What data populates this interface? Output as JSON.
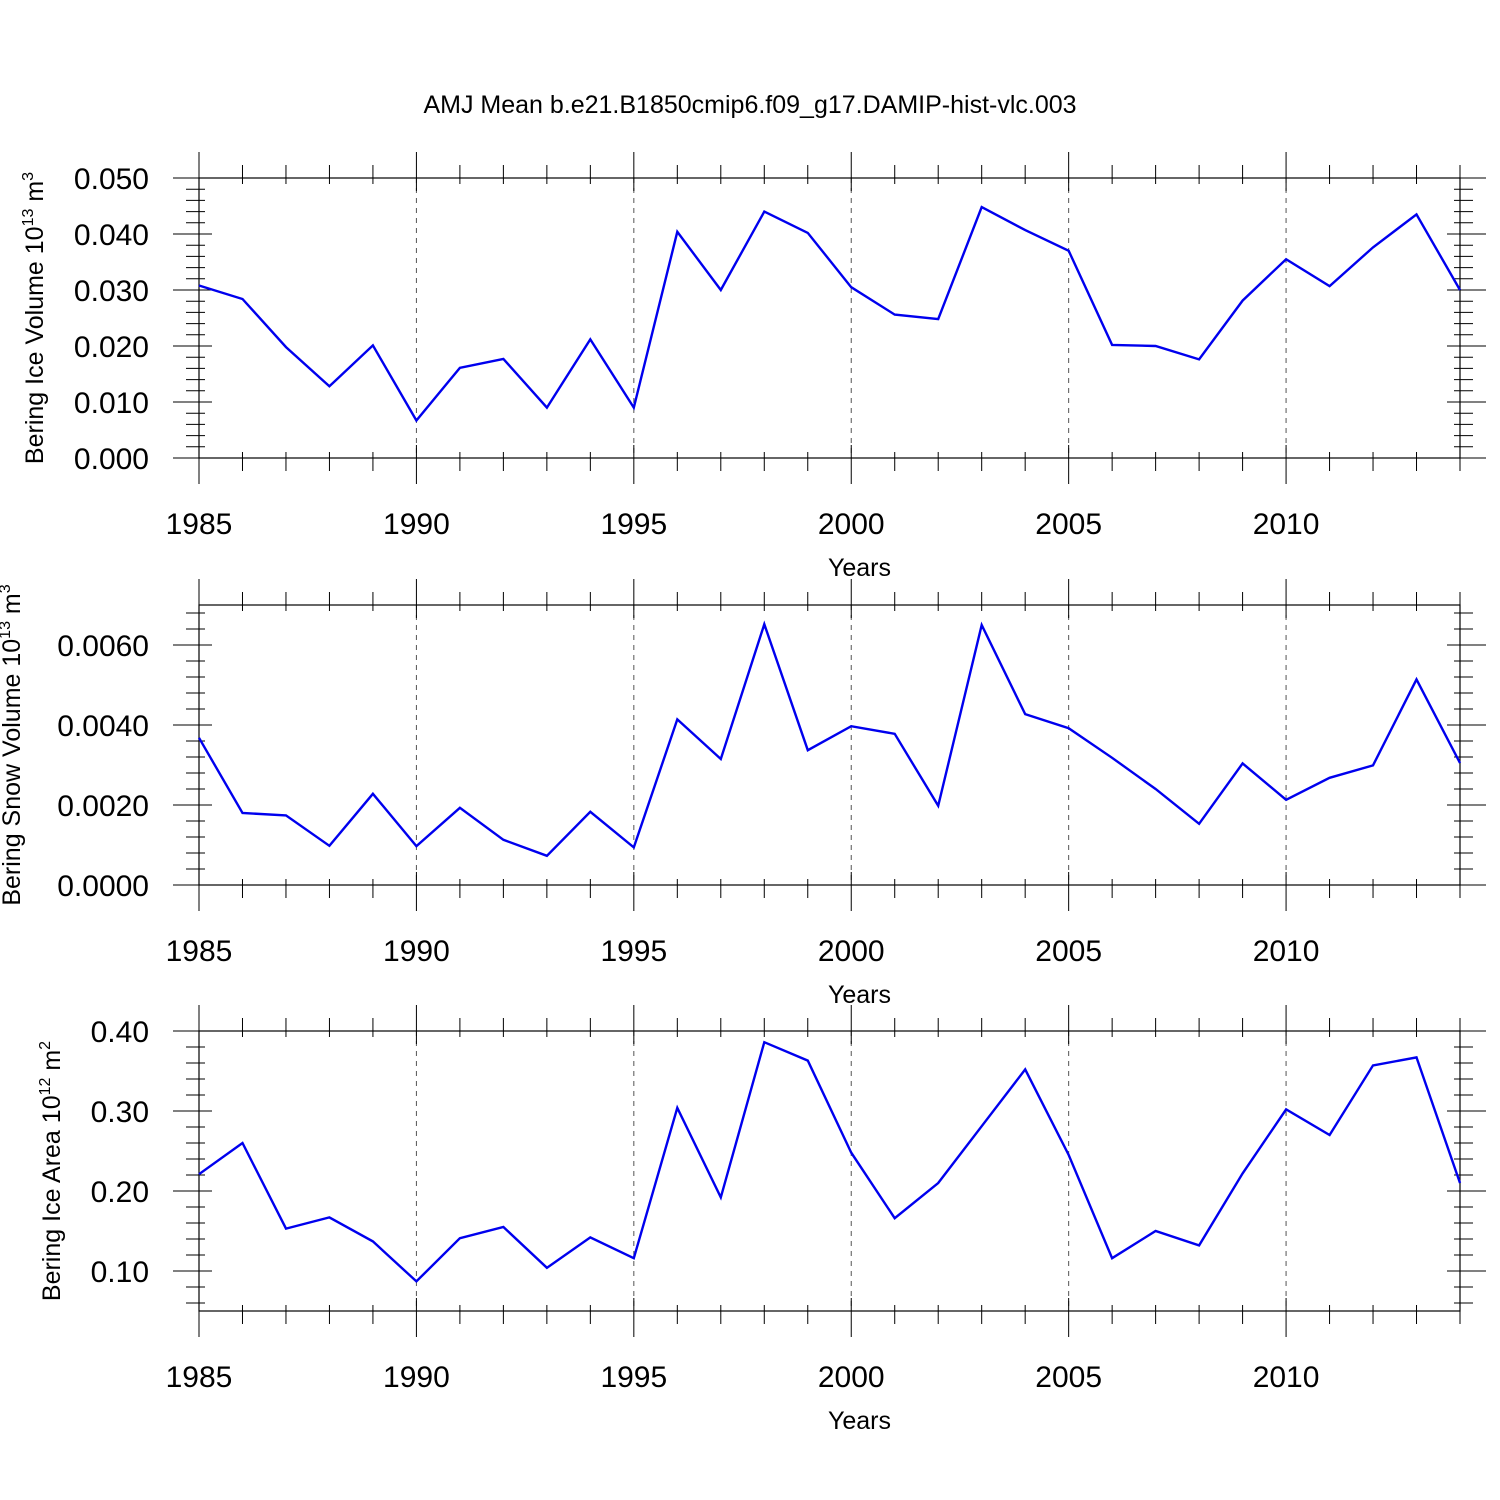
{
  "title": "AMJ Mean b.e21.B1850cmip6.f09_g17.DAMIP-hist-vlc.003",
  "colors": {
    "line": "#0000ee",
    "axis": "#000000",
    "grid": "#555555"
  },
  "chart_data": [
    {
      "type": "line",
      "ylabel": "Bering Ice Volume 10",
      "ylabel_exp": "13",
      "ylabel_unit": " m",
      "ylabel_unit_exp": "3",
      "xlabel": "Years",
      "xlim": [
        1985,
        2014
      ],
      "ylim": [
        0.0,
        0.05
      ],
      "xticks": [
        1985,
        1990,
        1995,
        2000,
        2005,
        2010
      ],
      "xtick_labels": [
        "1985",
        "1990",
        "1995",
        "2000",
        "2005",
        "2010"
      ],
      "yticks": [
        0.0,
        0.01,
        0.02,
        0.03,
        0.04,
        0.05
      ],
      "ytick_labels": [
        "0.000",
        "0.010",
        "0.020",
        "0.030",
        "0.040",
        "0.050"
      ],
      "grid": "vertical dashed at major x ticks",
      "x": [
        1985,
        1986,
        1987,
        1988,
        1989,
        1990,
        1991,
        1992,
        1993,
        1994,
        1995,
        1996,
        1997,
        1998,
        1999,
        2000,
        2001,
        2002,
        2003,
        2004,
        2005,
        2006,
        2007,
        2008,
        2009,
        2010,
        2011,
        2012,
        2013,
        2014
      ],
      "series": [
        {
          "values": [
            0.0308,
            0.0284,
            0.0198,
            0.0128,
            0.0201,
            0.0067,
            0.0161,
            0.0177,
            0.009,
            0.0212,
            0.009,
            0.0404,
            0.03,
            0.044,
            0.0402,
            0.0305,
            0.0256,
            0.0248,
            0.0448,
            0.0407,
            0.037,
            0.0202,
            0.02,
            0.0176,
            0.0281,
            0.0355,
            0.0307,
            0.0376,
            0.0435,
            0.03
          ]
        }
      ]
    },
    {
      "type": "line",
      "ylabel": "Bering Snow Volume 10",
      "ylabel_exp": "13",
      "ylabel_unit": " m",
      "ylabel_unit_exp": "3",
      "xlabel": "Years",
      "xlim": [
        1985,
        2014
      ],
      "ylim": [
        0.0,
        0.007
      ],
      "xticks": [
        1985,
        1990,
        1995,
        2000,
        2005,
        2010
      ],
      "xtick_labels": [
        "1985",
        "1990",
        "1995",
        "2000",
        "2005",
        "2010"
      ],
      "yticks": [
        0.0,
        0.002,
        0.004,
        0.006
      ],
      "ytick_labels": [
        "0.0000",
        "0.0020",
        "0.0040",
        "0.0060"
      ],
      "grid": "vertical dashed at major x ticks",
      "x": [
        1985,
        1986,
        1987,
        1988,
        1989,
        1990,
        1991,
        1992,
        1993,
        1994,
        1995,
        1996,
        1997,
        1998,
        1999,
        2000,
        2001,
        2002,
        2003,
        2004,
        2005,
        2006,
        2007,
        2008,
        2009,
        2010,
        2011,
        2012,
        2013,
        2014
      ],
      "series": [
        {
          "values": [
            0.00368,
            0.0018,
            0.00174,
            0.00098,
            0.00228,
            0.00097,
            0.00193,
            0.00113,
            0.00073,
            0.00183,
            0.00094,
            0.00414,
            0.00315,
            0.00652,
            0.00337,
            0.00397,
            0.00378,
            0.00198,
            0.0065,
            0.00427,
            0.00392,
            0.00318,
            0.0024,
            0.00153,
            0.00304,
            0.00213,
            0.00268,
            0.00299,
            0.00514,
            0.00305
          ]
        }
      ]
    },
    {
      "type": "line",
      "ylabel": "Bering Ice Area 10",
      "ylabel_exp": "12",
      "ylabel_unit": " m",
      "ylabel_unit_exp": "2",
      "xlabel": "Years",
      "xlim": [
        1985,
        2014
      ],
      "ylim": [
        0.05,
        0.4
      ],
      "xticks": [
        1985,
        1990,
        1995,
        2000,
        2005,
        2010
      ],
      "xtick_labels": [
        "1985",
        "1990",
        "1995",
        "2000",
        "2005",
        "2010"
      ],
      "yticks": [
        0.1,
        0.2,
        0.3,
        0.4
      ],
      "ytick_labels": [
        "0.10",
        "0.20",
        "0.30",
        "0.40"
      ],
      "grid": "vertical dashed at major x ticks",
      "x": [
        1985,
        1986,
        1987,
        1988,
        1989,
        1990,
        1991,
        1992,
        1993,
        1994,
        1995,
        1996,
        1997,
        1998,
        1999,
        2000,
        2001,
        2002,
        2003,
        2004,
        2005,
        2006,
        2007,
        2008,
        2009,
        2010,
        2011,
        2012,
        2013,
        2014
      ],
      "series": [
        {
          "values": [
            0.221,
            0.26,
            0.153,
            0.167,
            0.137,
            0.087,
            0.141,
            0.155,
            0.104,
            0.142,
            0.116,
            0.304,
            0.192,
            0.386,
            0.363,
            0.248,
            0.166,
            0.21,
            0.281,
            0.352,
            0.245,
            0.116,
            0.15,
            0.132,
            0.222,
            0.302,
            0.27,
            0.357,
            0.367,
            0.21
          ]
        }
      ]
    }
  ]
}
